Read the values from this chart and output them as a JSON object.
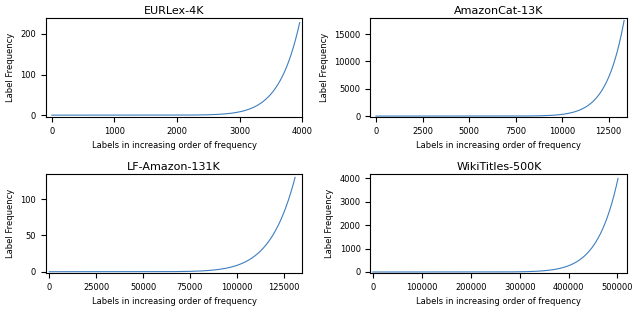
{
  "subplots": [
    {
      "title": "EURLex-4K",
      "n_labels": 3956,
      "max_freq": 228,
      "power": 12.0,
      "xlim": [
        -100,
        4000
      ],
      "ylim": [
        -5,
        240
      ],
      "xticks": [
        0,
        1000,
        2000,
        3000,
        4000
      ],
      "yticks": [
        0,
        100,
        200
      ]
    },
    {
      "title": "AmazonCat-13K",
      "n_labels": 13330,
      "max_freq": 17500,
      "power": 14.0,
      "xlim": [
        -300,
        13500
      ],
      "ylim": [
        -200,
        18000
      ],
      "xticks": [
        0,
        2500,
        5000,
        7500,
        10000,
        12500
      ],
      "yticks": [
        0,
        5000,
        10000,
        15000
      ]
    },
    {
      "title": "LF-Amazon-131K",
      "n_labels": 131073,
      "max_freq": 130,
      "power": 10.0,
      "xlim": [
        -2000,
        135000
      ],
      "ylim": [
        -2,
        135
      ],
      "xticks": [
        0,
        25000,
        50000,
        75000,
        100000,
        125000
      ],
      "yticks": [
        0,
        50,
        100
      ]
    },
    {
      "title": "WikiTitles-500K",
      "n_labels": 501070,
      "max_freq": 4000,
      "power": 12.0,
      "xlim": [
        -5000,
        520000
      ],
      "ylim": [
        -50,
        4200
      ],
      "xticks": [
        0,
        100000,
        200000,
        300000,
        400000,
        500000
      ],
      "yticks": [
        0,
        1000,
        2000,
        3000,
        4000
      ]
    }
  ],
  "line_color": "#3d7ebf",
  "xlabel": "Labels in increasing order of frequency",
  "ylabel": "Label Frequency",
  "figsize": [
    6.4,
    3.12
  ],
  "dpi": 100
}
